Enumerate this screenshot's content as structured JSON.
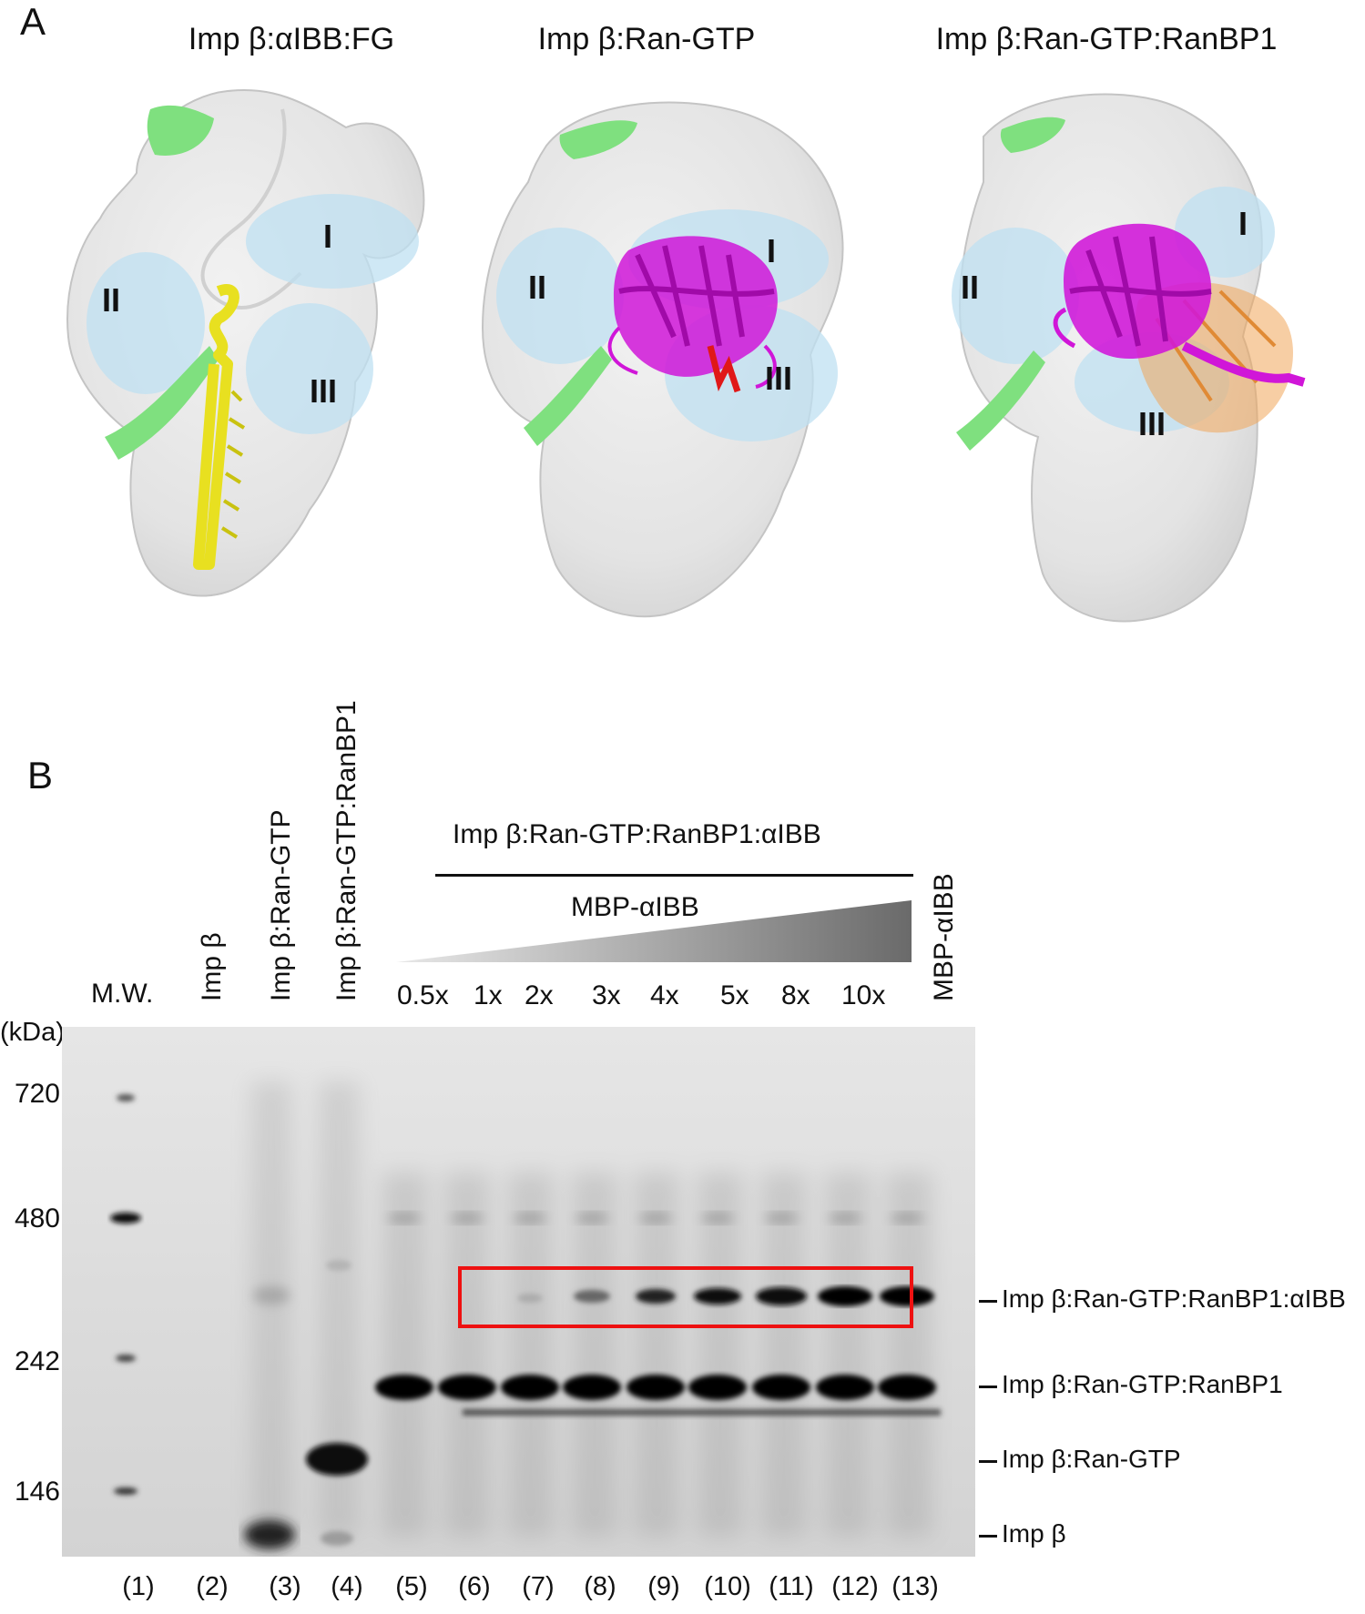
{
  "panel_a": {
    "letter": "A",
    "structures": [
      {
        "title": "Imp β:αIBB:FG",
        "sites": [
          "I",
          "II",
          "III"
        ]
      },
      {
        "title": "Imp β:Ran-GTP",
        "sites": [
          "I",
          "II",
          "III"
        ]
      },
      {
        "title": "Imp β:Ran-GTP:RanBP1",
        "sites": [
          "I",
          "II",
          "III"
        ]
      }
    ],
    "colors": {
      "surface": "#e6e6e6",
      "site_highlight": "#bfe0f2",
      "fg_region": "#7fe07f",
      "alpha_ibb": "#e8e020",
      "ran_gtp": "#d016d8",
      "gtp": "#e01818",
      "ranbp1": "#f0a55a"
    }
  },
  "panel_b": {
    "letter": "B",
    "complex_header": "Imp β:Ran-GTP:RanBP1:αIBB",
    "gradient_label": "MBP-αIBB",
    "lane_labels": [
      "M.W.",
      "Imp β",
      "Imp β:Ran-GTP",
      "Imp β:Ran-GTP:RanBP1",
      "MBP-αIBB"
    ],
    "ratios": [
      "0.5x",
      "1x",
      "2x",
      "3x",
      "4x",
      "5x",
      "8x",
      "10x"
    ],
    "unit": "(kDa)",
    "markers": [
      "720",
      "480",
      "242",
      "146"
    ],
    "band_labels": [
      "Imp β:Ran-GTP:RanBP1:αIBB",
      "Imp β:Ran-GTP:RanBP1",
      "Imp β:Ran-GTP",
      "Imp β"
    ],
    "lane_numbers": [
      "(1)",
      "(2)",
      "(3)",
      "(4)",
      "(5)",
      "(6)",
      "(7)",
      "(8)",
      "(9)",
      "(10)",
      "(11)",
      "(12)",
      "(13)"
    ],
    "highlight_color": "#ee1111"
  }
}
